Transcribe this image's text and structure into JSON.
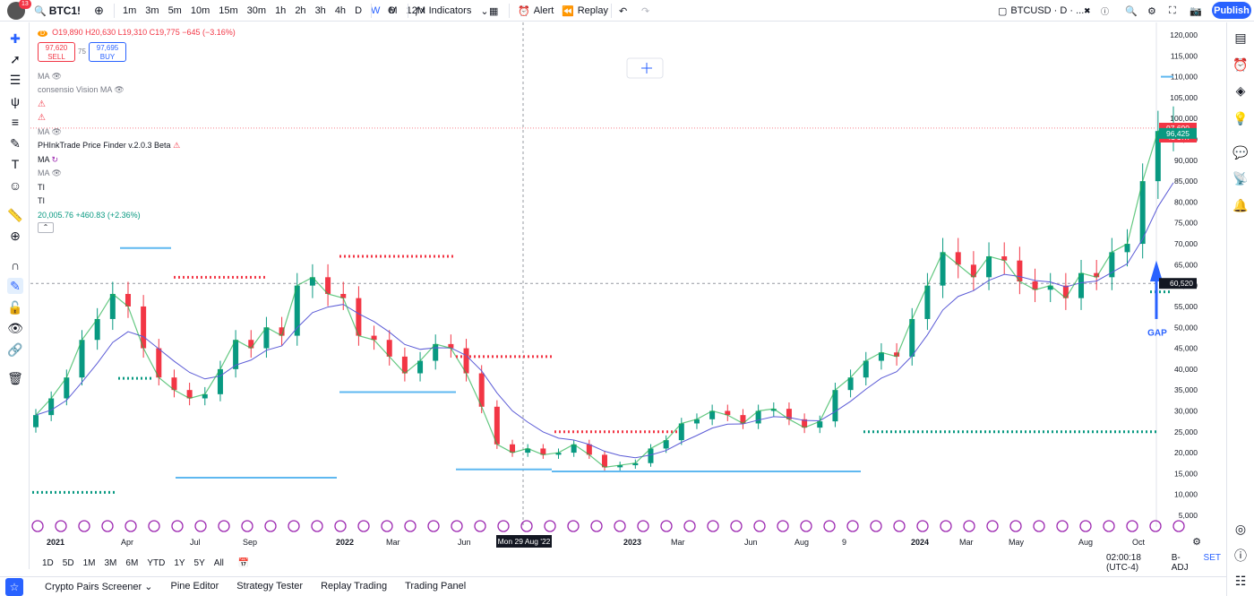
{
  "header": {
    "avatar_badge": "13",
    "symbol": "BTC1!",
    "timeframes": [
      "1m",
      "3m",
      "5m",
      "10m",
      "15m",
      "30m",
      "1h",
      "2h",
      "3h",
      "4h",
      "D",
      "W",
      "M",
      "12M"
    ],
    "active_timeframe": "W",
    "indicators_label": "Indicators",
    "alert_label": "Alert",
    "replay_label": "Replay",
    "ticker_label": "BTCUSD · D · ...",
    "publish_label": "Publish"
  },
  "legend": {
    "d_badge": "D",
    "ohlc": "O19,890 H20,630 L19,310 C19,775 −645 (−3.16%)",
    "sell_price": "97,620",
    "sell_label": "SELL",
    "spread": "75",
    "buy_price": "97,695",
    "buy_label": "BUY",
    "ind1": "MA",
    "ind2": "consensio Vision MA",
    "ind3": "MA",
    "ind4": "PHInkTrade Price Finder v.2.0.3 Beta",
    "ind5": "MA",
    "ind6": "MA",
    "ind7": "TI",
    "ind8": "TI",
    "last_value": "20,005.76 +460.83 (+2.36%)"
  },
  "chart_data": {
    "type": "candlestick",
    "price_axis": [
      "120,000",
      "115,000",
      "110,000",
      "105,000",
      "100,000",
      "95,000",
      "90,000",
      "85,000",
      "80,000",
      "75,000",
      "70,000",
      "65,000",
      "60,000",
      "55,000",
      "50,000",
      "45,000",
      "40,000",
      "35,000",
      "30,000",
      "25,000",
      "20,000",
      "15,000",
      "10,000",
      "5,000"
    ],
    "time_axis": [
      "2021",
      "Apr",
      "Jul",
      "Sep",
      "2022",
      "Mar",
      "Jun",
      "2023",
      "Mar",
      "Jun",
      "Aug",
      "9",
      "2024",
      "Mar",
      "May",
      "Aug",
      "Oct"
    ],
    "crosshair_date": "Mon 29 Aug '22",
    "current_price": "97,690",
    "countdown": "4d 17h",
    "ma_price": "96,425",
    "crosshair_price": "60,520",
    "annotation": "GAP",
    "colors": {
      "up": "#089981",
      "down": "#f23645",
      "ma": "#5b5bd6",
      "level": "#5fb8f0"
    },
    "closes_approx": [
      29000,
      33000,
      38000,
      47000,
      52000,
      58000,
      55000,
      45000,
      38000,
      35000,
      33000,
      34000,
      40000,
      47000,
      45000,
      50000,
      48000,
      60000,
      62000,
      58000,
      57000,
      48000,
      47000,
      43000,
      39000,
      42000,
      46000,
      45000,
      39000,
      31000,
      22000,
      20000,
      21000,
      19500,
      20000,
      22000,
      19500,
      16500,
      17000,
      17500,
      21000,
      23000,
      27000,
      28000,
      30000,
      29000,
      27000,
      30000,
      30500,
      28000,
      26000,
      27500,
      35000,
      38000,
      42000,
      44000,
      43000,
      52000,
      60000,
      68000,
      65000,
      62000,
      67000,
      66000,
      61000,
      59000,
      60000,
      57000,
      63000,
      62000,
      68000,
      70000,
      85000,
      97000,
      98000
    ]
  },
  "bottom": {
    "ranges": [
      "1D",
      "5D",
      "1M",
      "3M",
      "6M",
      "YTD",
      "1Y",
      "5Y",
      "All"
    ],
    "time": "02:00:18 (UTC-4)",
    "badj": "B-ADJ",
    "set": "SET"
  },
  "panel": {
    "tabs": [
      "Crypto Pairs Screener",
      "Pine Editor",
      "Strategy Tester",
      "Replay Trading",
      "Trading Panel"
    ]
  }
}
